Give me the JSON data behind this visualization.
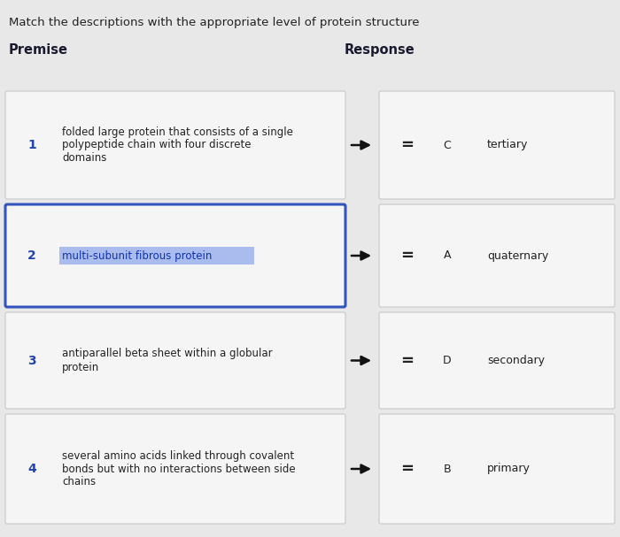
{
  "title": "Match the descriptions with the appropriate level of protein structure",
  "premise_label": "Premise",
  "response_label": "Response",
  "bg_color": "#e8e8e8",
  "card_bg": "#f5f5f5",
  "card_border": "#c8c8c8",
  "highlight_border": "#3355bb",
  "highlight_bg": "#f5f5f5",
  "text_highlight_bg": "#aabcee",
  "number_color": "#2244aa",
  "text_color": "#222222",
  "highlighted_text_color": "#1133aa",
  "premises": [
    {
      "number": "1",
      "text": "folded large protein that consists of a single\npolypeptide chain with four discrete\ndomains",
      "highlighted": false
    },
    {
      "number": "2",
      "text": "multi-subunit fibrous protein",
      "highlighted": true
    },
    {
      "number": "3",
      "text": "antiparallel beta sheet within a globular\nprotein",
      "highlighted": false
    },
    {
      "number": "4",
      "text": "several amino acids linked through covalent\nbonds but with no interactions between side\nchains",
      "highlighted": false
    }
  ],
  "responses": [
    {
      "letter": "C",
      "term": "tertiary"
    },
    {
      "letter": "A",
      "term": "quaternary"
    },
    {
      "letter": "D",
      "term": "secondary"
    },
    {
      "letter": "B",
      "term": "primary"
    }
  ],
  "title_fontsize": 9.5,
  "label_fontsize": 10.5,
  "number_fontsize": 10,
  "text_fontsize": 8.5,
  "response_fontsize": 9
}
